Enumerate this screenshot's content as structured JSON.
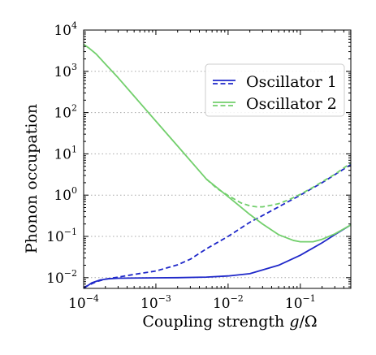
{
  "chart_data": {
    "type": "line",
    "xlabel": "Coupling strength g/Ω",
    "xlabel_parts": {
      "text": "Coupling strength ",
      "var": "g",
      "sep": "/",
      "sym": "Ω"
    },
    "ylabel": "Phonon occupation",
    "xscale": "log",
    "yscale": "log",
    "xlim": [
      0.0001,
      0.5
    ],
    "ylim": [
      0.0055,
      10000
    ],
    "grid": "horizontal dotted at y ticks",
    "legend_position": "upper-right",
    "x_ticks": [
      {
        "value": 0.0001,
        "base": "10",
        "exp": "−4"
      },
      {
        "value": 0.001,
        "base": "10",
        "exp": "−3"
      },
      {
        "value": 0.01,
        "base": "10",
        "exp": "−2"
      },
      {
        "value": 0.1,
        "base": "10",
        "exp": "−1"
      }
    ],
    "y_ticks": [
      {
        "value": 0.01,
        "base": "10",
        "exp": "−2"
      },
      {
        "value": 0.1,
        "base": "10",
        "exp": "−1"
      },
      {
        "value": 1,
        "base": "10",
        "exp": "0"
      },
      {
        "value": 10,
        "base": "10",
        "exp": "1"
      },
      {
        "value": 100,
        "base": "10",
        "exp": "2"
      },
      {
        "value": 1000,
        "base": "10",
        "exp": "3"
      },
      {
        "value": 10000,
        "base": "10",
        "exp": "4"
      }
    ],
    "legend": [
      {
        "name": "Oscillator 1",
        "color": "#1f28c9"
      },
      {
        "name": "Oscillator 2",
        "color": "#72cf6c"
      }
    ],
    "series": [
      {
        "name": "Oscillator 1 (solid)",
        "color": "#1f28c9",
        "dash": false,
        "x": [
          0.0001,
          0.00013,
          0.00017,
          0.00022,
          0.0003,
          0.0005,
          0.001,
          0.002,
          0.005,
          0.01,
          0.02,
          0.05,
          0.1,
          0.2,
          0.3,
          0.5
        ],
        "y": [
          0.0055,
          0.0075,
          0.0088,
          0.0094,
          0.0097,
          0.0098,
          0.0099,
          0.01,
          0.0103,
          0.011,
          0.0125,
          0.02,
          0.035,
          0.07,
          0.11,
          0.19
        ]
      },
      {
        "name": "Oscillator 1 (dashed)",
        "color": "#1f28c9",
        "dash": true,
        "x": [
          0.0001,
          0.00015,
          0.0002,
          0.0003,
          0.0005,
          0.001,
          0.002,
          0.003,
          0.005,
          0.01,
          0.02,
          0.03,
          0.05,
          0.1,
          0.2,
          0.5
        ],
        "y": [
          0.0058,
          0.008,
          0.0092,
          0.0103,
          0.012,
          0.0145,
          0.0205,
          0.028,
          0.05,
          0.1,
          0.22,
          0.32,
          0.52,
          1.0,
          2.0,
          5.5
        ]
      },
      {
        "name": "Oscillator 2 (solid)",
        "color": "#72cf6c",
        "dash": false,
        "x": [
          0.0001,
          0.00012,
          0.00015,
          0.0002,
          0.0003,
          0.0005,
          0.001,
          0.002,
          0.005,
          0.01,
          0.02,
          0.03,
          0.05,
          0.08,
          0.1,
          0.15,
          0.2,
          0.3,
          0.5
        ],
        "y": [
          4500,
          3600,
          2600,
          1500,
          700,
          250,
          62,
          15.5,
          2.45,
          0.92,
          0.34,
          0.2,
          0.11,
          0.08,
          0.074,
          0.074,
          0.085,
          0.115,
          0.19
        ]
      },
      {
        "name": "Oscillator 2 (dashed)",
        "color": "#72cf6c",
        "dash": true,
        "x": [
          0.005,
          0.007,
          0.01,
          0.015,
          0.02,
          0.025,
          0.03,
          0.04,
          0.05,
          0.07,
          0.1,
          0.15,
          0.2,
          0.3,
          0.5
        ],
        "y": [
          2.45,
          1.45,
          0.98,
          0.65,
          0.55,
          0.52,
          0.52,
          0.57,
          0.62,
          0.78,
          1.05,
          1.55,
          2.1,
          3.2,
          6.0
        ]
      }
    ]
  }
}
